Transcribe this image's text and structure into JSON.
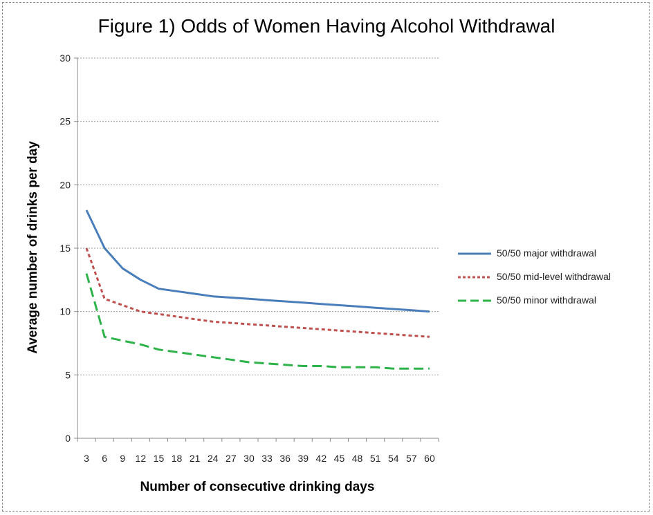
{
  "chart_data": {
    "type": "line",
    "title": "Figure 1) Odds of Women Having Alcohol Withdrawal",
    "xlabel": "Number of consecutive drinking days",
    "ylabel": "Average number of drinks per day",
    "categories": [
      "3",
      "6",
      "9",
      "12",
      "15",
      "18",
      "21",
      "24",
      "27",
      "30",
      "33",
      "36",
      "39",
      "42",
      "45",
      "48",
      "51",
      "54",
      "57",
      "60"
    ],
    "ylim": [
      0,
      30
    ],
    "yticks": [
      0,
      5,
      10,
      15,
      20,
      25,
      30
    ],
    "grid": "horizontal",
    "legend_position": "right",
    "series": [
      {
        "name": "50/50 major withdrawal",
        "color": "#4a7ebb",
        "style": "solid",
        "values": [
          18,
          15,
          13.4,
          12.5,
          11.8,
          11.6,
          11.4,
          11.2,
          11.1,
          11.0,
          10.9,
          10.8,
          10.7,
          10.6,
          10.5,
          10.4,
          10.3,
          10.2,
          10.1,
          10.0
        ]
      },
      {
        "name": "50/50 mid-level withdrawal",
        "color": "#c0504d",
        "style": "dotted",
        "values": [
          15,
          11,
          10.5,
          10.0,
          9.8,
          9.6,
          9.4,
          9.2,
          9.1,
          9.0,
          8.9,
          8.8,
          8.7,
          8.6,
          8.5,
          8.4,
          8.3,
          8.2,
          8.1,
          8.0
        ]
      },
      {
        "name": "50/50 minor withdrawal",
        "color": "#2db34a",
        "style": "dashed",
        "values": [
          13,
          8,
          7.7,
          7.4,
          7.0,
          6.8,
          6.6,
          6.4,
          6.2,
          6.0,
          5.9,
          5.8,
          5.7,
          5.7,
          5.6,
          5.6,
          5.6,
          5.5,
          5.5,
          5.5
        ]
      }
    ]
  }
}
